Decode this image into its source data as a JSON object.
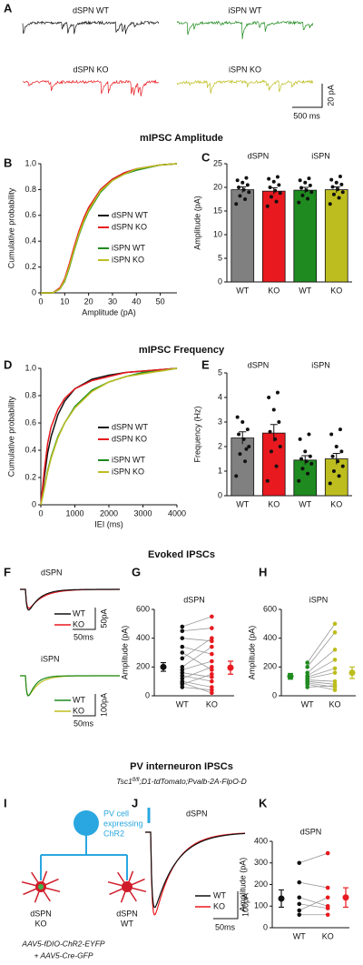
{
  "panel_letters": [
    "A",
    "B",
    "C",
    "D",
    "E",
    "F",
    "G",
    "H",
    "I",
    "J",
    "K"
  ],
  "section_titles": [
    "mIPSC Amplitude",
    "mIPSC Frequency",
    "Evoked IPSCs",
    "PV interneuron IPSCs"
  ],
  "pv_subtitle": {
    "gene": "Tsc1",
    "superscript": "fl/fl",
    "rest": ";D1-tdTomato;Pvalb-2A-FlpO-D"
  },
  "panel_a": {
    "labels": [
      "dSPN WT",
      "iSPN WT",
      "dSPN KO",
      "iSPN KO"
    ],
    "scale_y": "20 pA",
    "scale_x": "500 ms"
  },
  "panel_f": {
    "top": {
      "title": "dSPN",
      "legend": [
        "WT",
        "KO"
      ],
      "scale_y": "50pA",
      "scale_x": "50ms"
    },
    "bottom": {
      "title": "iSPN",
      "legend": [
        "WT",
        "KO"
      ],
      "scale_y": "100pA",
      "scale_x": "50ms"
    }
  },
  "panel_i": {
    "cell_label": [
      "PV cell",
      "expressing",
      "ChR2"
    ],
    "neuron_labels": [
      [
        "dSPN",
        "KO"
      ],
      [
        "dSPN",
        "WT"
      ]
    ],
    "virus": [
      "AAV5-fDIO-ChR2-EYFP",
      "+ AAV5-Cre-GFP"
    ]
  },
  "panel_j": {
    "title": "dSPN",
    "legend": [
      "WT",
      "KO"
    ],
    "scale_y": "100pA",
    "scale_x": "50ms"
  },
  "chart_data": [
    {
      "type": "line",
      "x_label": "Amplitude (pA)",
      "y_label": "Cumulative probability",
      "x": [
        0,
        5,
        8,
        10,
        12,
        14,
        16,
        18,
        20,
        25,
        30,
        35,
        40,
        50,
        57
      ],
      "series": [
        {
          "name": "dSPN WT",
          "color": "#111111",
          "values": [
            0,
            0,
            0.03,
            0.1,
            0.22,
            0.35,
            0.47,
            0.57,
            0.65,
            0.8,
            0.88,
            0.93,
            0.96,
            0.99,
            1
          ]
        },
        {
          "name": "dSPN KO",
          "color": "#e8191f",
          "values": [
            0,
            0,
            0.04,
            0.11,
            0.23,
            0.36,
            0.48,
            0.58,
            0.66,
            0.8,
            0.88,
            0.93,
            0.96,
            0.99,
            1
          ]
        },
        {
          "name": "iSPN WT",
          "color": "#1f8a1f",
          "values": [
            0,
            0,
            0.03,
            0.09,
            0.2,
            0.33,
            0.45,
            0.55,
            0.63,
            0.78,
            0.87,
            0.92,
            0.95,
            0.99,
            1
          ]
        },
        {
          "name": "iSPN KO",
          "color": "#bdbd1f",
          "values": [
            0,
            0,
            0.03,
            0.1,
            0.21,
            0.34,
            0.46,
            0.56,
            0.64,
            0.79,
            0.87,
            0.92,
            0.96,
            0.99,
            1
          ]
        }
      ],
      "xlim": [
        0,
        57
      ],
      "xticks": [
        0,
        10,
        20,
        30,
        40,
        50
      ],
      "ylim": [
        0,
        1
      ],
      "yticks": [
        0,
        0.2,
        0.4,
        0.6,
        0.8,
        {
          "value": 1,
          "label": "1.0"
        }
      ],
      "legend": "lower right"
    },
    {
      "type": "bar",
      "y_label": "Amplitude (pA)",
      "categories": [
        "WT",
        "KO",
        "WT",
        "KO"
      ],
      "group_labels": [
        "dSPN",
        "iSPN"
      ],
      "values": [
        19.5,
        19.2,
        19.4,
        19.5
      ],
      "errors": [
        0.6,
        0.7,
        0.6,
        0.6
      ],
      "colors": [
        "#808080",
        "#e8191f",
        "#1f8a1f",
        "#bdbd1f"
      ],
      "points": [
        [
          16.5,
          17.5,
          18.2,
          19,
          19.5,
          20,
          20.5,
          21,
          21.5,
          22
        ],
        [
          16,
          17,
          18,
          18.8,
          19.3,
          20,
          20.5,
          21.2,
          21.8,
          22.2
        ],
        [
          16.8,
          17.6,
          18.3,
          19,
          19.4,
          19.9,
          20.4,
          21,
          21.5,
          21.9
        ],
        [
          16.5,
          17.8,
          18.5,
          19,
          19.6,
          20.1,
          20.6,
          21,
          21.6,
          22.3
        ]
      ],
      "ylim": [
        0,
        25
      ],
      "yticks": [
        0,
        5,
        10,
        15,
        20,
        25
      ]
    },
    {
      "type": "line",
      "x_label": "IEI (ms)",
      "y_label": "Cumulative probability",
      "x": [
        0,
        100,
        200,
        300,
        500,
        700,
        1000,
        1500,
        2000,
        2500,
        3000,
        3500,
        4000
      ],
      "series": [
        {
          "name": "dSPN WT",
          "color": "#111111",
          "values": [
            0,
            0.2,
            0.38,
            0.5,
            0.66,
            0.76,
            0.85,
            0.92,
            0.95,
            0.97,
            0.98,
            0.99,
            1
          ]
        },
        {
          "name": "dSPN KO",
          "color": "#e8191f",
          "values": [
            0,
            0.25,
            0.45,
            0.57,
            0.7,
            0.78,
            0.85,
            0.91,
            0.94,
            0.97,
            0.98,
            0.99,
            1
          ]
        },
        {
          "name": "iSPN WT",
          "color": "#1f8a1f",
          "values": [
            0,
            0.12,
            0.25,
            0.35,
            0.5,
            0.6,
            0.72,
            0.84,
            0.9,
            0.94,
            0.97,
            0.98,
            1
          ]
        },
        {
          "name": "iSPN KO",
          "color": "#bdbd1f",
          "values": [
            0,
            0.12,
            0.24,
            0.34,
            0.49,
            0.6,
            0.71,
            0.83,
            0.9,
            0.94,
            0.96,
            0.98,
            1
          ]
        }
      ],
      "xlim": [
        0,
        4000
      ],
      "xticks": [
        0,
        1000,
        2000,
        3000,
        4000
      ],
      "ylim": [
        0,
        1
      ],
      "yticks": [
        0,
        0.2,
        0.4,
        0.6,
        0.8,
        {
          "value": 1,
          "label": "1.0"
        }
      ],
      "legend": "lower right"
    },
    {
      "type": "bar",
      "y_label": "Frequency (Hz)",
      "categories": [
        "WT",
        "KO",
        "WT",
        "KO"
      ],
      "group_labels": [
        "dSPN",
        "iSPN"
      ],
      "values": [
        2.35,
        2.55,
        1.45,
        1.5
      ],
      "errors": [
        0.25,
        0.35,
        0.18,
        0.22
      ],
      "colors": [
        "#808080",
        "#e8191f",
        "#1f8a1f",
        "#bdbd1f"
      ],
      "points": [
        [
          0.8,
          1.4,
          1.7,
          2,
          2.3,
          2.5,
          2.7,
          3,
          3.2,
          1.9
        ],
        [
          0.6,
          1.2,
          1.8,
          2,
          2.3,
          2.6,
          3,
          3.5,
          4,
          4.2
        ],
        [
          0.6,
          0.9,
          1.1,
          1.3,
          1.4,
          1.5,
          1.6,
          1.8,
          2.3,
          2.5
        ],
        [
          0.5,
          0.8,
          1,
          1.2,
          1.4,
          1.6,
          1.8,
          2,
          2.5,
          2.7
        ]
      ],
      "ylim": [
        0,
        5
      ],
      "yticks": [
        0,
        1,
        2,
        3,
        4,
        5
      ]
    },
    {
      "type": "paired",
      "title": "dSPN",
      "y_label": "Amplitude (pA)",
      "categories": [
        "WT",
        "KO"
      ],
      "colors": [
        "#111111",
        "#e8191f"
      ],
      "pairs": [
        [
          480,
          550
        ],
        [
          450,
          470
        ],
        [
          400,
          380
        ],
        [
          340,
          290
        ],
        [
          300,
          180
        ],
        [
          260,
          400
        ],
        [
          200,
          340
        ],
        [
          180,
          240
        ],
        [
          160,
          130
        ],
        [
          140,
          100
        ],
        [
          120,
          200
        ],
        [
          100,
          60
        ],
        [
          80,
          150
        ],
        [
          60,
          40
        ],
        [
          90,
          20
        ]
      ],
      "means": [
        200,
        195
      ],
      "errors": [
        30,
        45
      ],
      "ylim": [
        0,
        600
      ],
      "yticks": [
        0,
        200,
        400,
        600
      ]
    },
    {
      "type": "paired",
      "title": "iSPN",
      "y_label": "Amplitude (pA)",
      "categories": [
        "WT",
        "KO"
      ],
      "colors": [
        "#1f8a1f",
        "#bdbd1f"
      ],
      "pairs": [
        [
          230,
          500
        ],
        [
          200,
          440
        ],
        [
          160,
          320
        ],
        [
          140,
          250
        ],
        [
          130,
          190
        ],
        [
          120,
          160
        ],
        [
          110,
          100
        ],
        [
          100,
          80
        ],
        [
          90,
          60
        ],
        [
          80,
          40
        ],
        [
          60,
          70
        ]
      ],
      "means": [
        135,
        160
      ],
      "errors": [
        20,
        40
      ],
      "ylim": [
        0,
        600
      ],
      "yticks": [
        0,
        200,
        400,
        600
      ]
    },
    {
      "type": "paired",
      "title": "dSPN",
      "y_label": "Amplitude (pA)",
      "categories": [
        "WT",
        "KO"
      ],
      "colors": [
        "#111111",
        "#e8191f"
      ],
      "pairs": [
        [
          300,
          345
        ],
        [
          210,
          185
        ],
        [
          140,
          100
        ],
        [
          110,
          90
        ],
        [
          80,
          140
        ],
        [
          60,
          60
        ]
      ],
      "means": [
        135,
        140
      ],
      "errors": [
        40,
        45
      ],
      "ylim": [
        0,
        400
      ],
      "yticks": [
        0,
        100,
        200,
        300,
        400
      ]
    }
  ]
}
